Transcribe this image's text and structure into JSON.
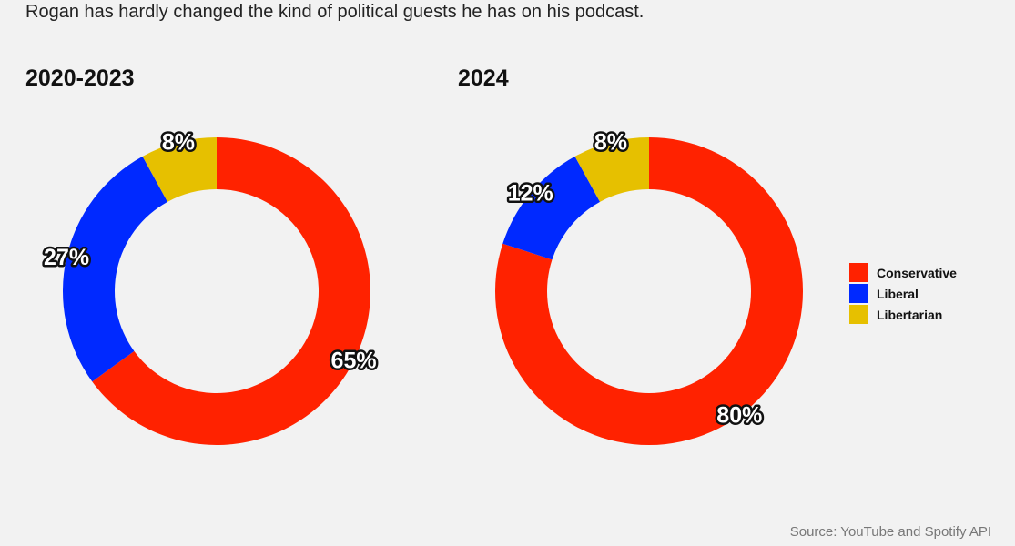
{
  "subtitle": "Rogan has hardly changed the kind of political guests he has on his podcast.",
  "source": "Source: YouTube and Spotify API",
  "colors": {
    "Conservative": "#ff2200",
    "Liberal": "#0029ff",
    "Libertarian": "#e6c000"
  },
  "legend": [
    "Conservative",
    "Liberal",
    "Libertarian"
  ],
  "chart_data": [
    {
      "type": "pie",
      "title": "2020-2023",
      "donut": true,
      "slices": [
        {
          "label": "Conservative",
          "value": 65,
          "text": "65%"
        },
        {
          "label": "Liberal",
          "value": 27,
          "text": "27%"
        },
        {
          "label": "Libertarian",
          "value": 8,
          "text": "8%"
        }
      ]
    },
    {
      "type": "pie",
      "title": "2024",
      "donut": true,
      "slices": [
        {
          "label": "Conservative",
          "value": 80,
          "text": "80%"
        },
        {
          "label": "Liberal",
          "value": 12,
          "text": "12%"
        },
        {
          "label": "Libertarian",
          "value": 8,
          "text": "8%"
        }
      ]
    }
  ]
}
